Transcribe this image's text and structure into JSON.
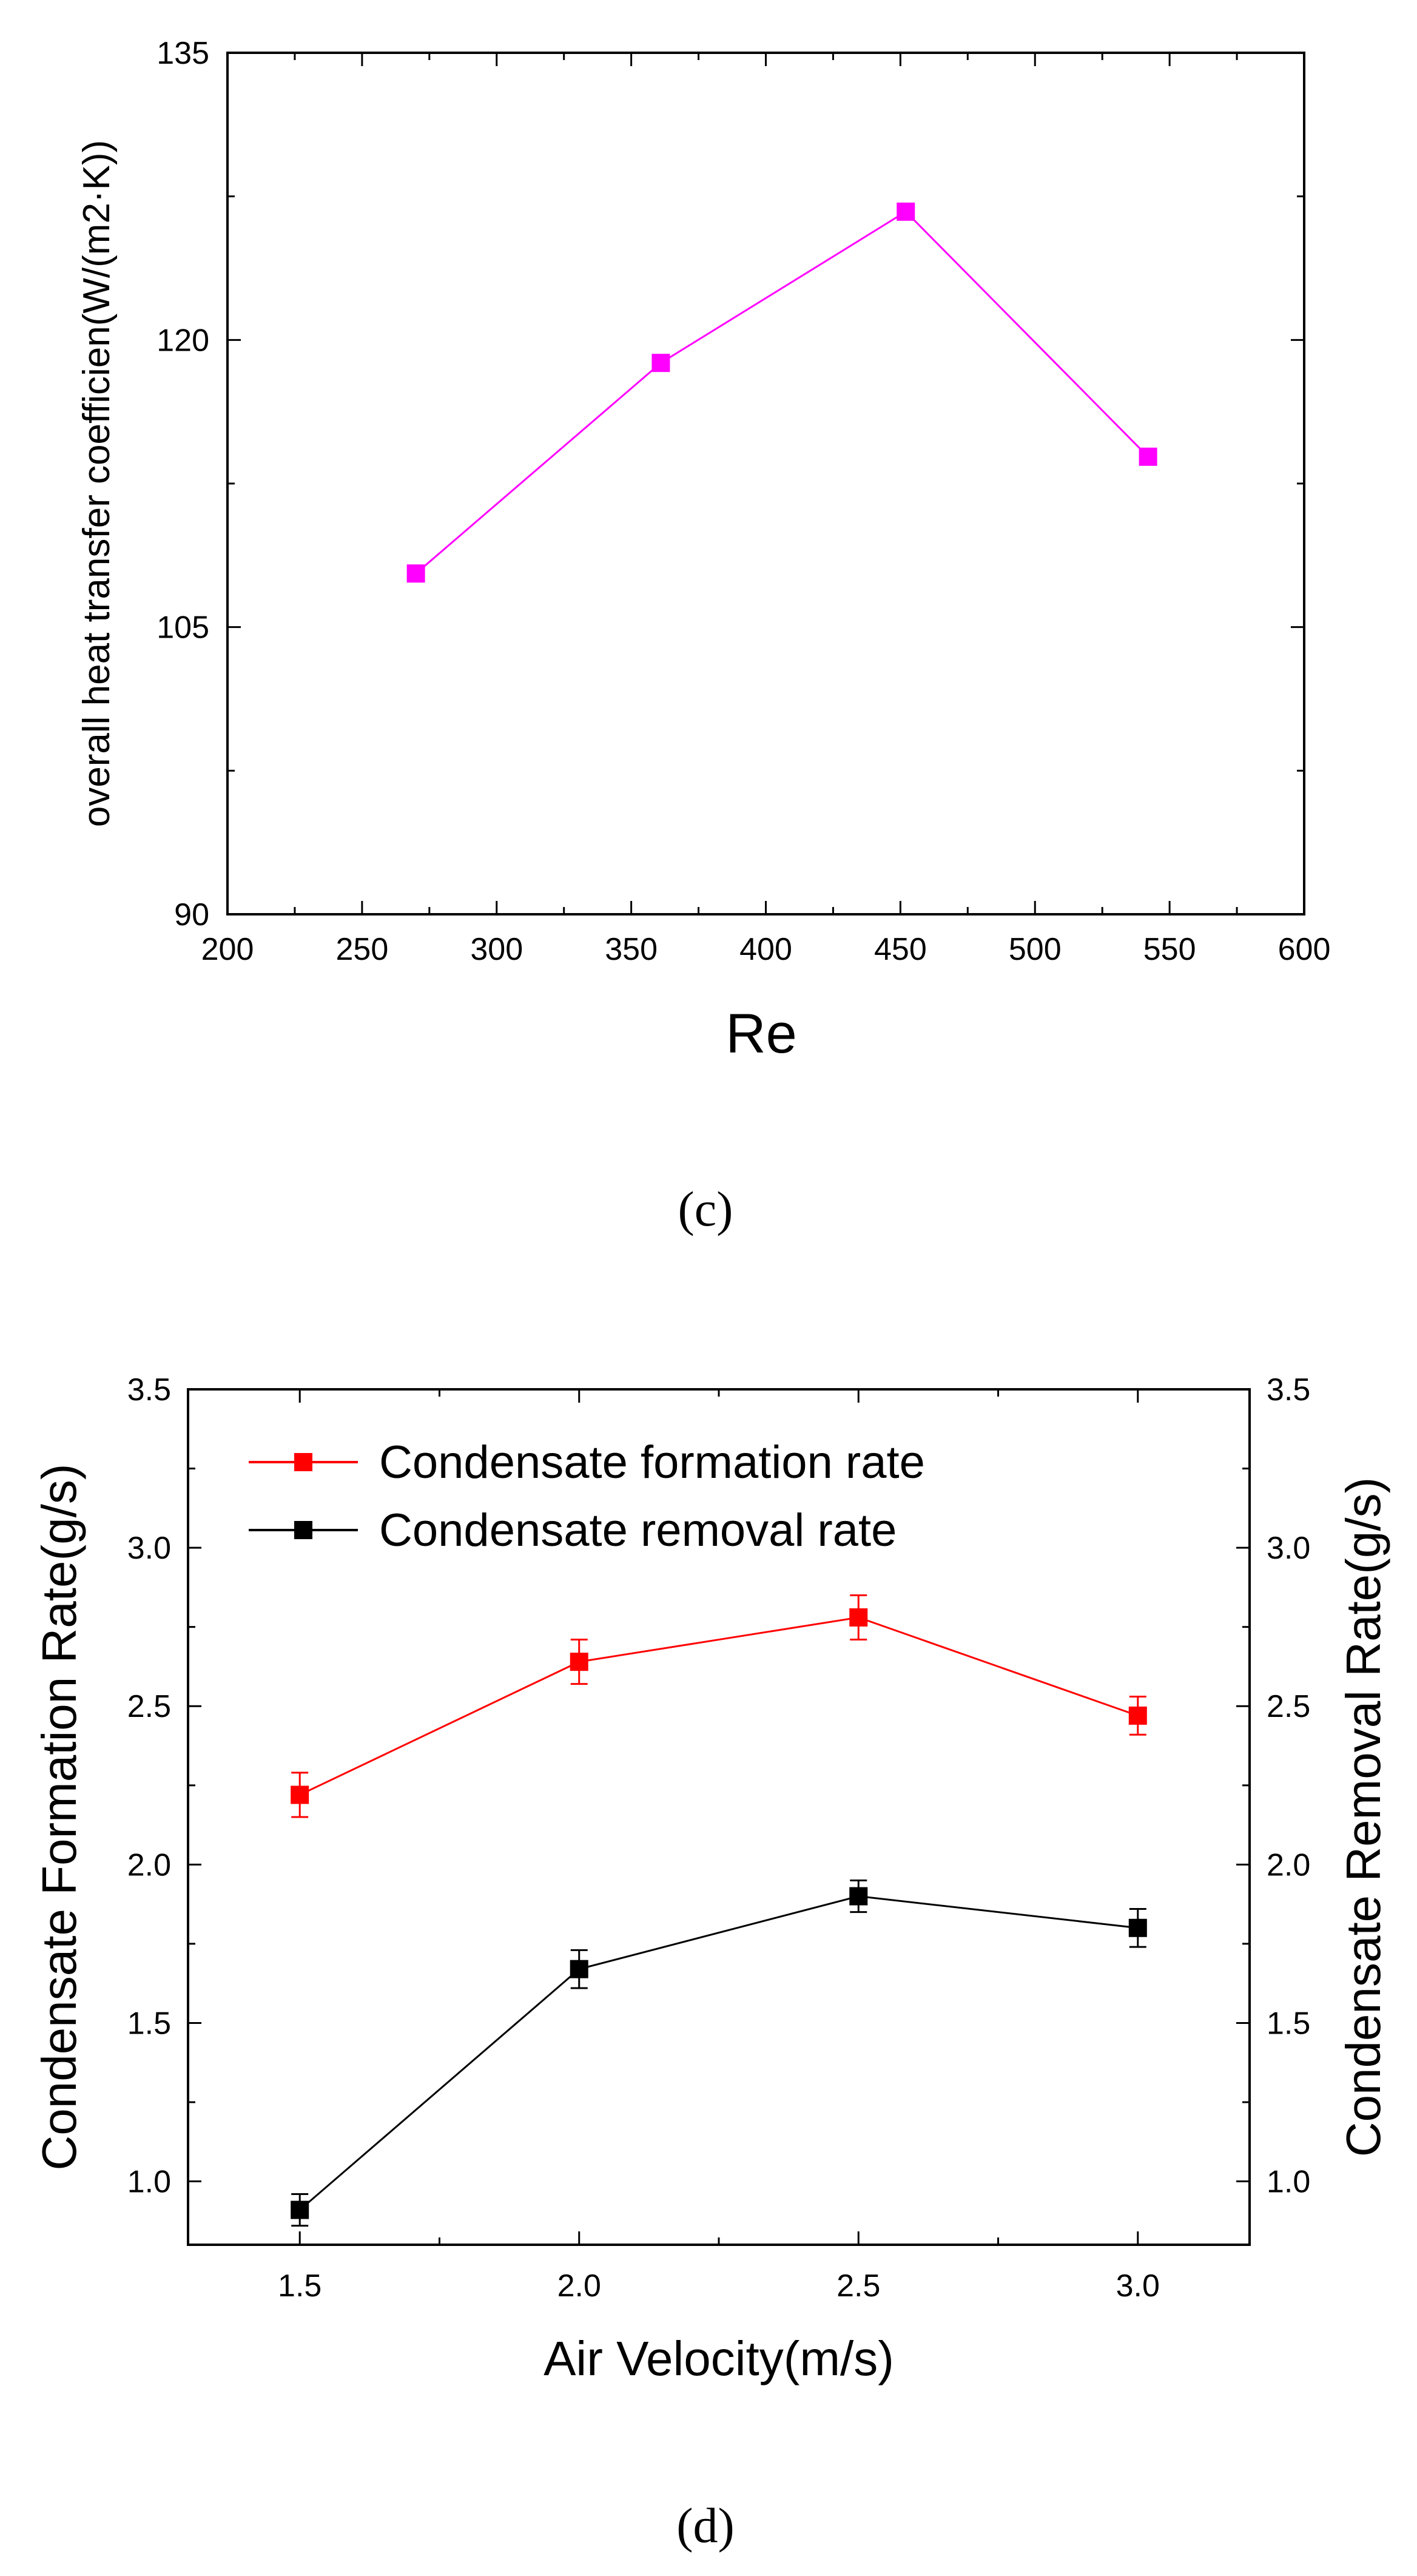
{
  "chart_data": [
    {
      "type": "line",
      "caption": "(c)",
      "xlabel": "Re",
      "ylabel": "overall heat transfer coefficien(W/(m2·K))",
      "xlim": [
        200,
        600
      ],
      "ylim": [
        90,
        135
      ],
      "xticks": [
        "200",
        "250",
        "300",
        "350",
        "400",
        "450",
        "500",
        "550",
        "600"
      ],
      "yticks": [
        "90",
        "105",
        "120",
        "135"
      ],
      "series": [
        {
          "name": "overall heat transfer coefficient",
          "color": "#ff00ff",
          "marker": "square",
          "x": [
            270,
            361,
            452,
            542
          ],
          "y": [
            107.8,
            118.8,
            126.7,
            113.9
          ]
        }
      ]
    },
    {
      "type": "line",
      "caption": "(d)",
      "xlabel": "Air Velocity(m/s)",
      "ylabel": "Condensate Formation Rate(g/s)",
      "y2label": "Condensate Removal Rate(g/s)",
      "xlim": [
        1.3,
        3.2
      ],
      "ylim": [
        0.8,
        3.5
      ],
      "xticks": [
        "1.5",
        "2.0",
        "2.5",
        "3.0"
      ],
      "yticks": [
        "1.0",
        "1.5",
        "2.0",
        "2.5",
        "3.0",
        "3.5"
      ],
      "y2ticks": [
        "1.0",
        "1.5",
        "2.0",
        "2.5",
        "3.0",
        "3.5"
      ],
      "legend": [
        "Condensate formation rate",
        "Condensate removal rate"
      ],
      "legend_position": "top-left",
      "series": [
        {
          "name": "Condensate formation rate",
          "color": "#ff0000",
          "marker": "square",
          "x": [
            1.5,
            2.0,
            2.5,
            3.0
          ],
          "y": [
            2.22,
            2.64,
            2.78,
            2.47
          ],
          "error": [
            0.07,
            0.07,
            0.07,
            0.06
          ]
        },
        {
          "name": "Condensate removal rate",
          "color": "#000000",
          "marker": "square",
          "x": [
            1.5,
            2.0,
            2.5,
            3.0
          ],
          "y": [
            0.91,
            1.67,
            1.9,
            1.8
          ],
          "error": [
            0.05,
            0.06,
            0.05,
            0.06
          ]
        }
      ]
    }
  ]
}
